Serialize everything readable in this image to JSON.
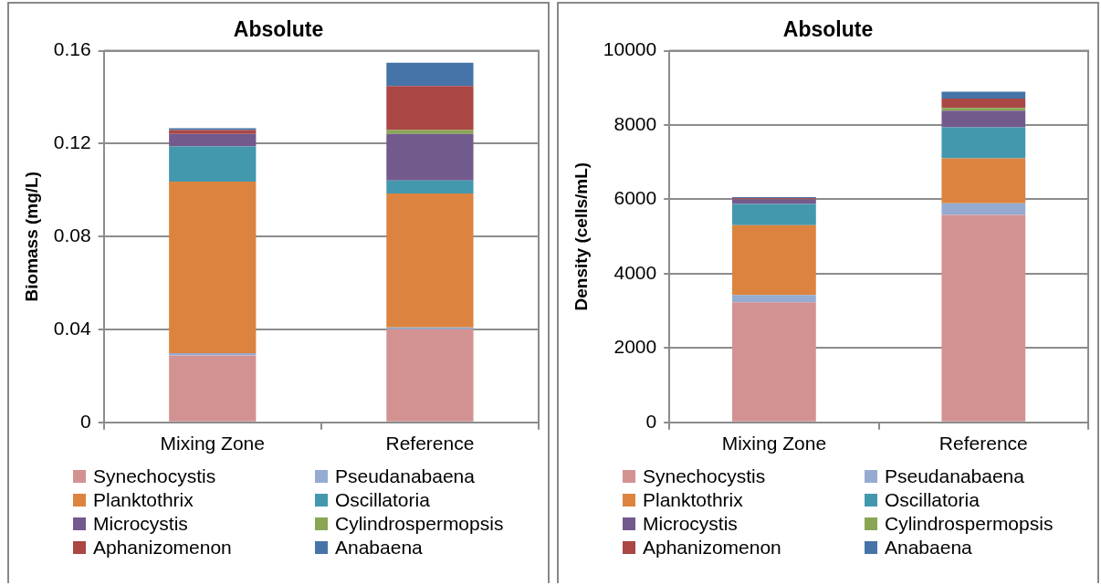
{
  "chart_data": [
    {
      "type": "bar",
      "title": "Absolute",
      "ylabel": "Biomass (mg/L)",
      "categories": [
        "Mixing Zone",
        "Reference"
      ],
      "stacked": true,
      "ylim": [
        0,
        0.16
      ],
      "yticks": [
        0,
        0.04,
        0.08,
        0.12,
        0.16
      ],
      "grid": "y",
      "legend": "bottom",
      "series": [
        {
          "name": "Synechocystis",
          "color": "#d39292",
          "values": [
            0.0288,
            0.0401
          ]
        },
        {
          "name": "Pseudanabaena",
          "color": "#95abd2",
          "values": [
            0.001,
            0.0008
          ]
        },
        {
          "name": "Planktothrix",
          "color": "#dc843f",
          "values": [
            0.0739,
            0.0576
          ]
        },
        {
          "name": "Oscillatoria",
          "color": "#4398ae",
          "values": [
            0.0151,
            0.0056
          ]
        },
        {
          "name": "Microcystis",
          "color": "#735a8d",
          "values": [
            0.0054,
            0.0201
          ]
        },
        {
          "name": "Cylindrospermopsis",
          "color": "#8aa655",
          "values": [
            0,
            0.0017
          ]
        },
        {
          "name": "Aphanizomenon",
          "color": "#aa4745",
          "values": [
            0.0017,
            0.0189
          ]
        },
        {
          "name": "Anabaena",
          "color": "#4674a8",
          "values": [
            0.0007,
            0.01
          ]
        }
      ]
    },
    {
      "type": "bar",
      "title": "Absolute",
      "ylabel": "Density (cells/mL)",
      "categories": [
        "Mixing Zone",
        "Reference"
      ],
      "stacked": true,
      "ylim": [
        0,
        10000
      ],
      "yticks": [
        0,
        2000,
        4000,
        6000,
        8000,
        10000
      ],
      "grid": "y",
      "legend": "bottom",
      "series": [
        {
          "name": "Synechocystis",
          "color": "#d39292",
          "values": [
            3228,
            5585
          ]
        },
        {
          "name": "Pseudanabaena",
          "color": "#95abd2",
          "values": [
            202,
            308
          ]
        },
        {
          "name": "Planktothrix",
          "color": "#dc843f",
          "values": [
            1873,
            1213
          ]
        },
        {
          "name": "Oscillatoria",
          "color": "#4398ae",
          "values": [
            572,
            836
          ]
        },
        {
          "name": "Microcystis",
          "color": "#735a8d",
          "values": [
            123,
            448
          ]
        },
        {
          "name": "Cylindrospermopsis",
          "color": "#8aa655",
          "values": [
            0,
            71
          ]
        },
        {
          "name": "Aphanizomenon",
          "color": "#aa4745",
          "values": [
            35,
            255
          ]
        },
        {
          "name": "Anabaena",
          "color": "#4674a8",
          "values": [
            27,
            184
          ]
        }
      ]
    }
  ]
}
